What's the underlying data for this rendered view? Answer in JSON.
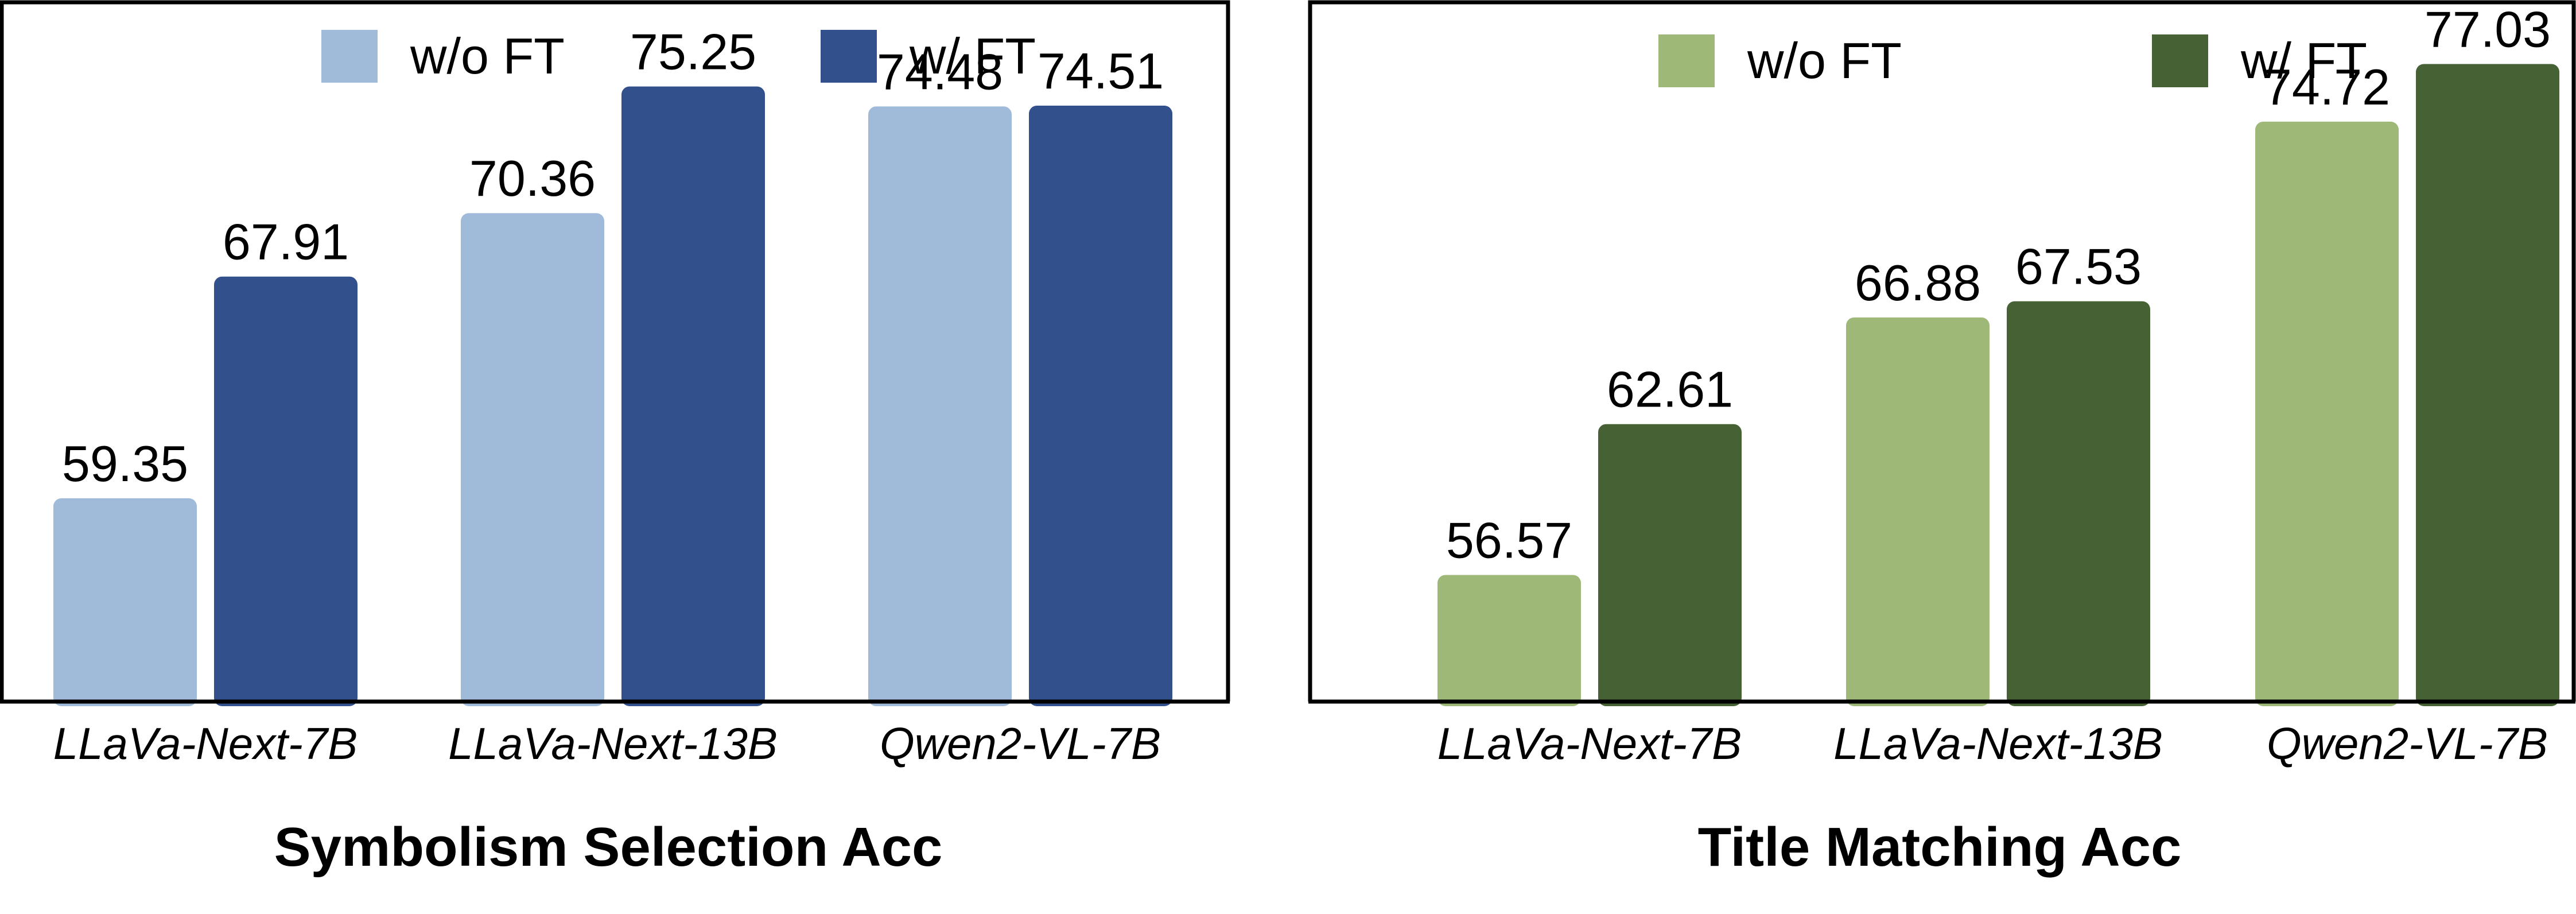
{
  "chart_data": [
    {
      "type": "bar",
      "title": "Symbolism Selection Acc",
      "categories": [
        "LLaVa-Next-7B",
        "LLaVa-Next-13B",
        "Qwen2-VL-7B"
      ],
      "series": [
        {
          "name": "w/o FT",
          "values": [
            59.35,
            70.36,
            74.48
          ],
          "labels": [
            "59.35",
            "70.36",
            "74.48"
          ],
          "color": "#a0bad9"
        },
        {
          "name": "w/ FT",
          "values": [
            67.91,
            75.25,
            74.51
          ],
          "labels": [
            "67.91",
            "75.25",
            "74.51"
          ],
          "color": "#32508c"
        }
      ],
      "ylim": [
        51.5,
        78.5
      ],
      "grid": false,
      "legend": "top"
    },
    {
      "type": "bar",
      "title": "Title Matching Acc",
      "categories": [
        "LLaVa-Next-7B",
        "LLaVa-Next-13B",
        "Qwen2-VL-7B"
      ],
      "series": [
        {
          "name": "w/o FT",
          "values": [
            56.57,
            66.88,
            74.72
          ],
          "labels": [
            "56.57",
            "66.88",
            "74.72"
          ],
          "color": "#9db877"
        },
        {
          "name": "w/ FT",
          "values": [
            62.61,
            67.53,
            77.03
          ],
          "labels": [
            "62.61",
            "67.53",
            "77.03"
          ],
          "color": "#466234"
        }
      ],
      "ylim": [
        51.5,
        79.5
      ],
      "grid": false,
      "legend": "top"
    }
  ]
}
